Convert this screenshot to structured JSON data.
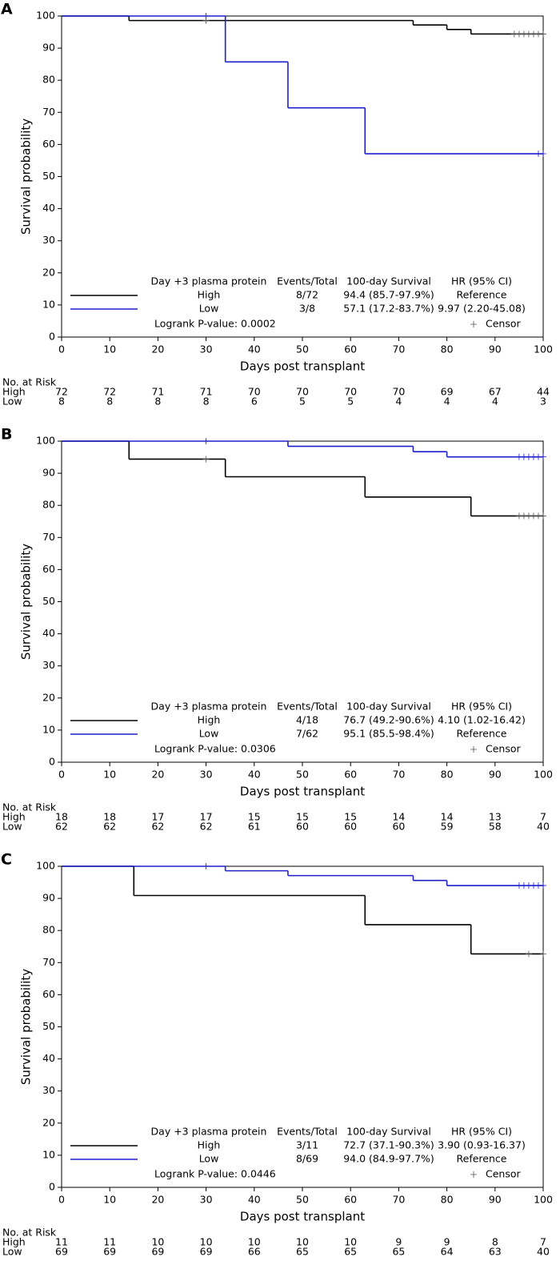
{
  "chart_data": [
    {
      "type": "line",
      "panel": "A",
      "ylabel": "Survival probability",
      "xlabel": "Days post transplant",
      "xlim": [
        0,
        100
      ],
      "ylim": [
        0,
        100
      ],
      "xticks": [
        0,
        10,
        20,
        30,
        40,
        50,
        60,
        70,
        80,
        90,
        100
      ],
      "yticks": [
        0,
        10,
        20,
        30,
        40,
        50,
        60,
        70,
        80,
        90,
        100
      ],
      "series": [
        {
          "name": "High",
          "color": "#000000",
          "x": [
            0,
            14,
            73,
            80,
            85,
            100
          ],
          "values": [
            100,
            98.6,
            97.2,
            95.8,
            94.4,
            94.4
          ],
          "censor_x": [
            30,
            94,
            95,
            96,
            97,
            98,
            99,
            100
          ]
        },
        {
          "name": "Low",
          "color": "#1f1fcc",
          "x": [
            0,
            34,
            47,
            63,
            100
          ],
          "values": [
            100,
            85.7,
            71.4,
            57.1,
            57.1
          ],
          "censor_x": [
            30,
            99,
            100
          ]
        }
      ],
      "legend": {
        "headers": [
          "Day +3 plasma protein",
          "Events/Total",
          "100-day Survival",
          "HR (95% CI)"
        ],
        "rows": [
          [
            "High",
            "8/72",
            "94.4 (85.7-97.9%)",
            "Reference"
          ],
          [
            "Low",
            "3/8",
            "57.1 (17.2-83.7%)",
            "9.97 (2.20-45.08)"
          ]
        ],
        "pvalue": "Logrank P-value: 0.0002",
        "censor": "Censor"
      },
      "risk": {
        "title": "No. at Risk",
        "rows": [
          [
            72,
            72,
            71,
            71,
            70,
            70,
            70,
            70,
            69,
            67,
            44
          ],
          [
            8,
            8,
            8,
            8,
            6,
            5,
            5,
            4,
            4,
            4,
            3
          ]
        ]
      }
    },
    {
      "type": "line",
      "panel": "B",
      "ylabel": "Survival probability",
      "xlabel": "Days post transplant",
      "xlim": [
        0,
        100
      ],
      "ylim": [
        0,
        100
      ],
      "xticks": [
        0,
        10,
        20,
        30,
        40,
        50,
        60,
        70,
        80,
        90,
        100
      ],
      "yticks": [
        0,
        10,
        20,
        30,
        40,
        50,
        60,
        70,
        80,
        90,
        100
      ],
      "series": [
        {
          "name": "High",
          "color": "#000000",
          "x": [
            0,
            14,
            34,
            63,
            85,
            100
          ],
          "values": [
            100,
            94.4,
            88.9,
            82.6,
            76.7,
            76.7
          ],
          "censor_x": [
            30,
            95,
            96,
            97,
            98,
            99,
            100
          ]
        },
        {
          "name": "Low",
          "color": "#1f1fcc",
          "x": [
            0,
            47,
            73,
            80,
            100
          ],
          "values": [
            100,
            98.4,
            96.7,
            95.1,
            95.1
          ],
          "censor_x": [
            30,
            95,
            96,
            97,
            98,
            99,
            100
          ]
        }
      ],
      "legend": {
        "headers": [
          "Day +3 plasma protein",
          "Events/Total",
          "100-day Survival",
          "HR (95% CI)"
        ],
        "rows": [
          [
            "High",
            "4/18",
            "76.7 (49.2-90.6%)",
            "4.10 (1.02-16.42)"
          ],
          [
            "Low",
            "7/62",
            "95.1 (85.5-98.4%)",
            "Reference"
          ]
        ],
        "pvalue": "Logrank P-value: 0.0306",
        "censor": "Censor"
      },
      "risk": {
        "title": "No. at Risk",
        "rows": [
          [
            18,
            18,
            17,
            17,
            15,
            15,
            15,
            14,
            14,
            13,
            7
          ],
          [
            62,
            62,
            62,
            62,
            61,
            60,
            60,
            60,
            59,
            58,
            40
          ]
        ]
      }
    },
    {
      "type": "line",
      "panel": "C",
      "ylabel": "Survival probability",
      "xlabel": "Days post transplant",
      "xlim": [
        0,
        100
      ],
      "ylim": [
        0,
        100
      ],
      "xticks": [
        0,
        10,
        20,
        30,
        40,
        50,
        60,
        70,
        80,
        90,
        100
      ],
      "yticks": [
        0,
        10,
        20,
        30,
        40,
        50,
        60,
        70,
        80,
        90,
        100
      ],
      "series": [
        {
          "name": "High",
          "color": "#000000",
          "x": [
            0,
            15,
            63,
            85,
            100
          ],
          "values": [
            100,
            90.9,
            81.8,
            72.7,
            72.7
          ],
          "censor_x": [
            97,
            100
          ]
        },
        {
          "name": "Low",
          "color": "#1f1fcc",
          "x": [
            0,
            34,
            47,
            73,
            80,
            100
          ],
          "values": [
            100,
            98.6,
            97.1,
            95.6,
            94.0,
            94.0
          ],
          "censor_x": [
            30,
            95,
            96,
            97,
            98,
            99,
            100
          ]
        }
      ],
      "legend": {
        "headers": [
          "Day +3 plasma protein",
          "Events/Total",
          "100-day Survival",
          "HR (95% CI)"
        ],
        "rows": [
          [
            "High",
            "3/11",
            "72.7 (37.1-90.3%)",
            "3.90 (0.93-16.37)"
          ],
          [
            "Low",
            "8/69",
            "94.0 (84.9-97.7%)",
            "Reference"
          ]
        ],
        "pvalue": "Logrank P-value: 0.0446",
        "censor": "Censor"
      },
      "risk": {
        "title": "No. at Risk",
        "rows": [
          [
            11,
            11,
            10,
            10,
            10,
            10,
            10,
            9,
            9,
            8,
            7
          ],
          [
            69,
            69,
            69,
            69,
            66,
            65,
            65,
            65,
            64,
            63,
            40
          ]
        ]
      }
    }
  ]
}
